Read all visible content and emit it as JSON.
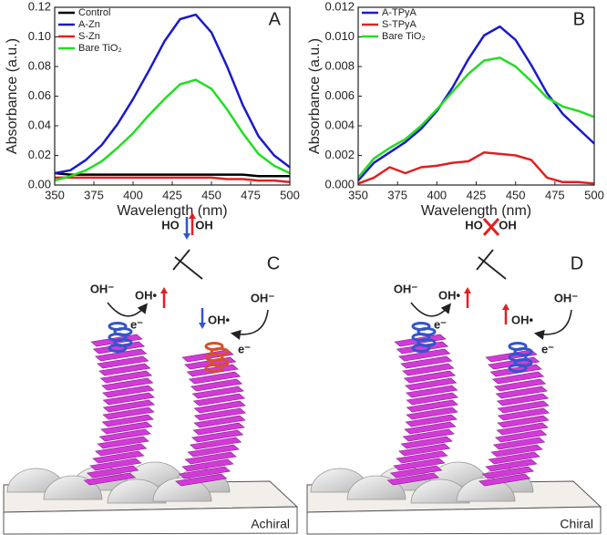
{
  "chart_data": [
    {
      "type": "line",
      "panel_label": "A",
      "x_label": "Wavelength (nm)",
      "y_label": "Absorbance (a.u.)",
      "x": [
        350,
        360,
        370,
        380,
        390,
        400,
        410,
        420,
        430,
        440,
        450,
        460,
        470,
        480,
        490,
        500
      ],
      "xlim": [
        350,
        500
      ],
      "xticks": [
        350,
        375,
        400,
        425,
        450,
        475,
        500
      ],
      "ylim": [
        0,
        0.12
      ],
      "yticks": [
        {
          "value": 0,
          "label": "0.00"
        },
        {
          "value": 0.02,
          "label": "0.02"
        },
        {
          "value": 0.04,
          "label": "0.04"
        },
        {
          "value": 0.06,
          "label": "0.06"
        },
        {
          "value": 0.08,
          "label": "0.08"
        },
        {
          "value": 0.1,
          "label": "0.10"
        },
        {
          "value": 0.12,
          "label": "0.12"
        }
      ],
      "legend": "upper left",
      "series": [
        {
          "name": "Control",
          "color": "#000000",
          "values": [
            0.008,
            0.007,
            0.007,
            0.007,
            0.007,
            0.007,
            0.007,
            0.007,
            0.007,
            0.007,
            0.007,
            0.007,
            0.007,
            0.006,
            0.006,
            0.006
          ]
        },
        {
          "name": "A-Zn",
          "color": "#1a1acc",
          "values": [
            0.008,
            0.01,
            0.017,
            0.027,
            0.041,
            0.058,
            0.077,
            0.097,
            0.112,
            0.115,
            0.103,
            0.08,
            0.054,
            0.033,
            0.02,
            0.012
          ]
        },
        {
          "name": "S-Zn",
          "color": "#e02020",
          "values": [
            0.005,
            0.005,
            0.005,
            0.005,
            0.005,
            0.005,
            0.005,
            0.005,
            0.005,
            0.005,
            0.005,
            0.004,
            0.004,
            0.003,
            0.003,
            0.002
          ]
        },
        {
          "name": "Bare TiO₂",
          "color": "#22dd22",
          "values": [
            0.003,
            0.006,
            0.01,
            0.016,
            0.025,
            0.035,
            0.047,
            0.058,
            0.068,
            0.071,
            0.065,
            0.051,
            0.035,
            0.021,
            0.013,
            0.008
          ]
        }
      ]
    },
    {
      "type": "line",
      "panel_label": "B",
      "x_label": "Wavelength (nm)",
      "y_label": "Absorbance (a.u.)",
      "x": [
        350,
        360,
        370,
        380,
        390,
        400,
        410,
        420,
        430,
        440,
        450,
        460,
        470,
        480,
        490,
        500
      ],
      "xlim": [
        350,
        500
      ],
      "xticks": [
        350,
        375,
        400,
        425,
        450,
        475,
        500
      ],
      "ylim": [
        0,
        0.012
      ],
      "yticks": [
        {
          "value": 0,
          "label": "0.000"
        },
        {
          "value": 0.002,
          "label": "0.002"
        },
        {
          "value": 0.004,
          "label": "0.004"
        },
        {
          "value": 0.006,
          "label": "0.006"
        },
        {
          "value": 0.008,
          "label": "0.008"
        },
        {
          "value": 0.01,
          "label": "0.010"
        },
        {
          "value": 0.012,
          "label": "0.012"
        }
      ],
      "legend": "upper left",
      "series": [
        {
          "name": "A-TPyA",
          "color": "#1a1acc",
          "values": [
            0.0003,
            0.0015,
            0.0022,
            0.0029,
            0.0038,
            0.005,
            0.0066,
            0.0085,
            0.0101,
            0.0107,
            0.0098,
            0.0081,
            0.0062,
            0.0048,
            0.0038,
            0.0028
          ]
        },
        {
          "name": "S-TPyA",
          "color": "#e02020",
          "values": [
            0.0001,
            0.0005,
            0.0012,
            0.0008,
            0.0012,
            0.0013,
            0.0015,
            0.0016,
            0.0022,
            0.0021,
            0.002,
            0.0017,
            0.0005,
            0.0002,
            0.0002,
            0.0001
          ]
        },
        {
          "name": "Bare TiO₂",
          "color": "#22dd22",
          "values": [
            0.0005,
            0.0018,
            0.0025,
            0.0031,
            0.004,
            0.0051,
            0.0063,
            0.0075,
            0.0084,
            0.0086,
            0.008,
            0.007,
            0.0059,
            0.0053,
            0.005,
            0.0046
          ]
        }
      ]
    }
  ],
  "panels": [
    {
      "label": "C",
      "caption": "Achiral",
      "texts": [
        "OH⁻",
        "OH•",
        "e⁻",
        "OH•",
        "OH⁻",
        "e⁻",
        "HO",
        "OH"
      ]
    },
    {
      "label": "D",
      "caption": "Chiral",
      "texts": [
        "OH⁻",
        "OH•",
        "e⁻",
        "OH•",
        "OH⁻",
        "e⁻",
        "HO",
        "OH"
      ]
    }
  ]
}
